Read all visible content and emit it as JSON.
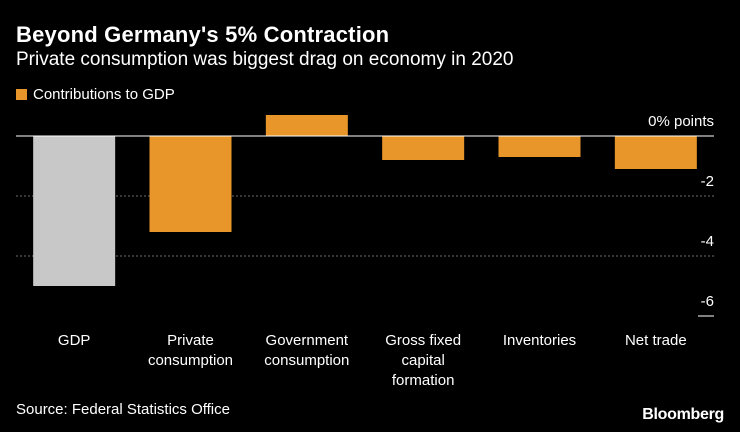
{
  "header": {
    "title": "Beyond Germany's 5% Contraction",
    "subtitle": "Private consumption was biggest drag on economy in 2020"
  },
  "legend": {
    "label": "Contributions to GDP"
  },
  "footer": {
    "source": "Source: Federal Statistics Office",
    "brand": "Bloomberg"
  },
  "colors": {
    "accent": "#e8952a",
    "gdp_bar": "#c8c8c8",
    "grid": "#6e6e6e",
    "zero_line": "#ffffff"
  },
  "chart_data": {
    "type": "bar",
    "title": "Beyond Germany's 5% Contraction",
    "subtitle": "Private consumption was biggest drag on economy in 2020",
    "xlabel": "",
    "ylabel": "% points",
    "ylim": [
      -6,
      0.7
    ],
    "yticks": [
      {
        "value": 0,
        "label": "0% points"
      },
      {
        "value": -2,
        "label": "-2"
      },
      {
        "value": -4,
        "label": "-4"
      },
      {
        "value": -6,
        "label": "-6"
      }
    ],
    "grid": true,
    "legend_position": "top-left",
    "categories": [
      [
        "GDP"
      ],
      [
        "Private",
        "consumption"
      ],
      [
        "Government",
        "consumption"
      ],
      [
        "Gross fixed",
        "capital",
        "formation"
      ],
      [
        "Inventories"
      ],
      [
        "Net trade"
      ]
    ],
    "series": [
      {
        "name": "GDP",
        "values": [
          -5.0,
          null,
          null,
          null,
          null,
          null
        ]
      },
      {
        "name": "Contributions to GDP",
        "values": [
          null,
          -3.2,
          0.7,
          -0.8,
          -0.7,
          -1.1
        ]
      }
    ]
  }
}
